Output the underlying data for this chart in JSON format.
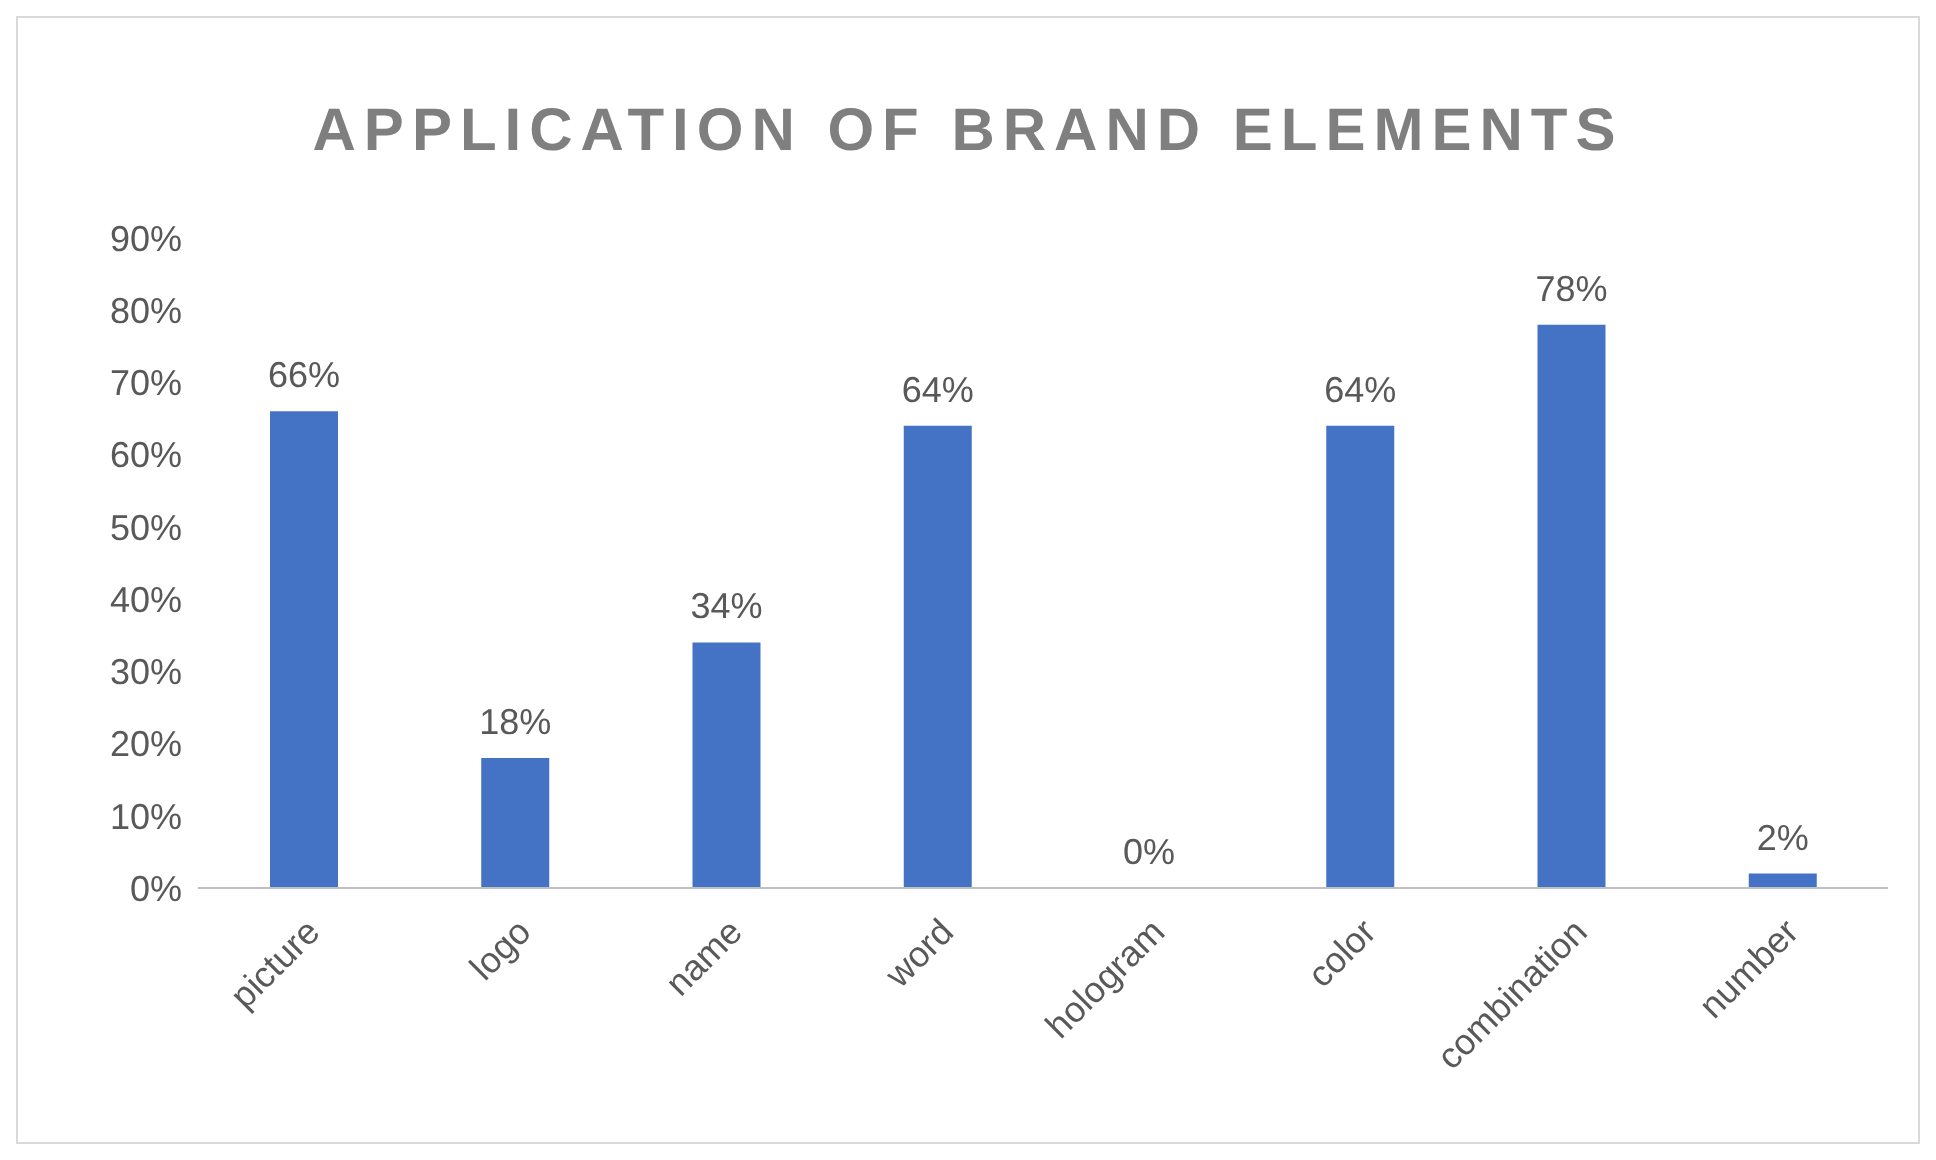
{
  "chart_data": {
    "type": "bar",
    "title": "APPLICATION OF BRAND ELEMENTS",
    "categories": [
      "picture",
      "logo",
      "name",
      "word",
      "hologram",
      "color",
      "combination",
      "number"
    ],
    "values": [
      66,
      18,
      34,
      64,
      0,
      64,
      78,
      2
    ],
    "value_labels": [
      "66%",
      "18%",
      "34%",
      "64%",
      "0%",
      "64%",
      "78%",
      "2%"
    ],
    "color": "#4472c4",
    "ylim": [
      0,
      90
    ],
    "yticks": [
      {
        "value": 0,
        "label": "0%"
      },
      {
        "value": 10,
        "label": "10%"
      },
      {
        "value": 20,
        "label": "20%"
      },
      {
        "value": 30,
        "label": "30%"
      },
      {
        "value": 40,
        "label": "40%"
      },
      {
        "value": 50,
        "label": "50%"
      },
      {
        "value": 60,
        "label": "60%"
      },
      {
        "value": 70,
        "label": "70%"
      },
      {
        "value": 80,
        "label": "80%"
      },
      {
        "value": 90,
        "label": "90%"
      }
    ],
    "grid": false,
    "legend": false
  }
}
